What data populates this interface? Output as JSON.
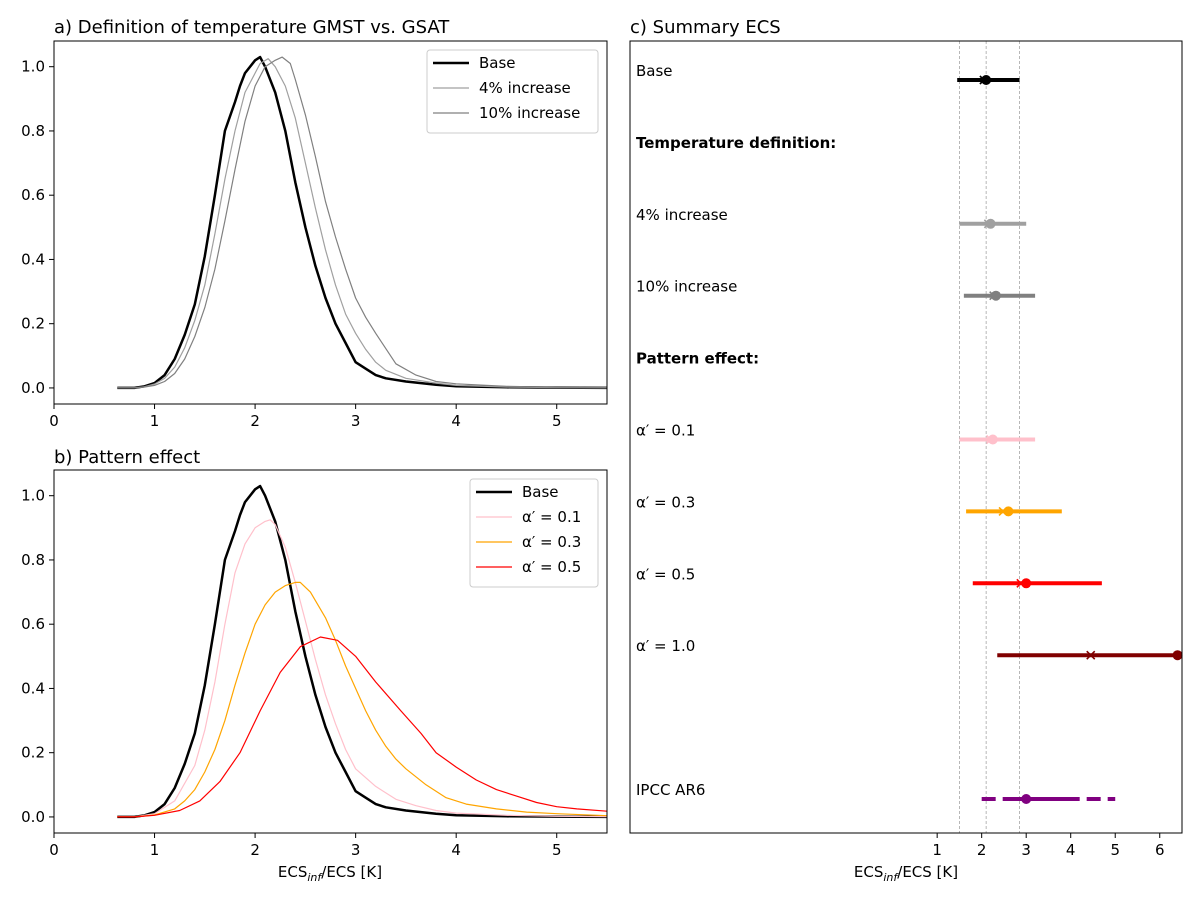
{
  "chart_data": [
    {
      "type": "line",
      "title": "a) Definition of temperature GMST vs. GSAT",
      "xlabel": "",
      "ylabel": "",
      "xlim": [
        0,
        5.5
      ],
      "ylim": [
        -0.05,
        1.08
      ],
      "xticks": [
        0,
        1,
        2,
        3,
        4,
        5
      ],
      "yticks": [
        0.0,
        0.2,
        0.4,
        0.6,
        0.8,
        1.0
      ],
      "legend_position": "upper-right",
      "series": [
        {
          "name": "Base",
          "color": "#000000",
          "x": [
            0.63,
            0.8,
            0.9,
            1.0,
            1.1,
            1.2,
            1.3,
            1.4,
            1.5,
            1.6,
            1.7,
            1.8,
            1.85,
            1.9,
            2.0,
            2.05,
            2.1,
            2.2,
            2.3,
            2.4,
            2.5,
            2.6,
            2.7,
            2.8,
            2.9,
            3.0,
            3.1,
            3.2,
            3.3,
            3.5,
            3.8,
            4.0,
            4.5,
            5.0,
            5.5
          ],
          "y": [
            0.0,
            0.0,
            0.005,
            0.015,
            0.04,
            0.09,
            0.165,
            0.26,
            0.41,
            0.6,
            0.8,
            0.89,
            0.94,
            0.98,
            1.02,
            1.03,
            1.0,
            0.92,
            0.8,
            0.64,
            0.5,
            0.38,
            0.28,
            0.2,
            0.14,
            0.08,
            0.06,
            0.04,
            0.03,
            0.02,
            0.01,
            0.005,
            0.002,
            0.001,
            0.0
          ]
        },
        {
          "name": "4% increase",
          "color": "#a0a0a0",
          "x": [
            0.63,
            0.8,
            0.9,
            1.0,
            1.1,
            1.2,
            1.3,
            1.4,
            1.5,
            1.6,
            1.7,
            1.8,
            1.9,
            2.0,
            2.05,
            2.13,
            2.2,
            2.3,
            2.4,
            2.5,
            2.6,
            2.7,
            2.8,
            2.9,
            3.0,
            3.1,
            3.2,
            3.3,
            3.5,
            3.8,
            4.0,
            4.5,
            5.0,
            5.5
          ],
          "y": [
            0.0,
            0.0,
            0.004,
            0.012,
            0.03,
            0.065,
            0.125,
            0.21,
            0.32,
            0.48,
            0.65,
            0.8,
            0.92,
            0.98,
            1.01,
            1.025,
            1.0,
            0.94,
            0.84,
            0.7,
            0.56,
            0.43,
            0.32,
            0.23,
            0.17,
            0.12,
            0.08,
            0.055,
            0.03,
            0.015,
            0.008,
            0.003,
            0.001,
            0.0
          ]
        },
        {
          "name": "10% increase",
          "color": "#808080",
          "x": [
            0.63,
            0.8,
            0.9,
            1.0,
            1.1,
            1.2,
            1.3,
            1.4,
            1.5,
            1.6,
            1.7,
            1.8,
            1.9,
            2.0,
            2.1,
            2.2,
            2.27,
            2.35,
            2.4,
            2.5,
            2.6,
            2.7,
            2.8,
            2.9,
            3.0,
            3.1,
            3.2,
            3.4,
            3.6,
            3.8,
            4.0,
            4.5,
            5.0,
            5.5
          ],
          "y": [
            0.0,
            0.0,
            0.003,
            0.008,
            0.02,
            0.045,
            0.09,
            0.16,
            0.25,
            0.37,
            0.52,
            0.68,
            0.83,
            0.94,
            1.0,
            1.02,
            1.03,
            1.01,
            0.96,
            0.85,
            0.72,
            0.58,
            0.47,
            0.37,
            0.28,
            0.22,
            0.17,
            0.075,
            0.04,
            0.02,
            0.013,
            0.005,
            0.002,
            0.001
          ]
        }
      ]
    },
    {
      "type": "line",
      "title": "b) Pattern effect",
      "xlabel": "ECS_inf/ECS [K]",
      "ylabel": "",
      "xlim": [
        0,
        5.5
      ],
      "ylim": [
        -0.05,
        1.08
      ],
      "xticks": [
        0,
        1,
        2,
        3,
        4,
        5
      ],
      "yticks": [
        0.0,
        0.2,
        0.4,
        0.6,
        0.8,
        1.0
      ],
      "legend_position": "upper-right",
      "series": [
        {
          "name": "Base",
          "color": "#000000",
          "x": [
            0.63,
            0.8,
            0.9,
            1.0,
            1.1,
            1.2,
            1.3,
            1.4,
            1.5,
            1.6,
            1.7,
            1.8,
            1.85,
            1.9,
            2.0,
            2.05,
            2.1,
            2.2,
            2.3,
            2.4,
            2.5,
            2.6,
            2.7,
            2.8,
            2.9,
            3.0,
            3.1,
            3.2,
            3.3,
            3.5,
            3.8,
            4.0,
            4.5,
            5.0,
            5.5
          ],
          "y": [
            0.0,
            0.0,
            0.005,
            0.015,
            0.04,
            0.09,
            0.165,
            0.26,
            0.41,
            0.6,
            0.8,
            0.89,
            0.94,
            0.98,
            1.02,
            1.03,
            1.0,
            0.92,
            0.8,
            0.64,
            0.5,
            0.38,
            0.28,
            0.2,
            0.14,
            0.08,
            0.06,
            0.04,
            0.03,
            0.02,
            0.01,
            0.005,
            0.002,
            0.001,
            0.0
          ]
        },
        {
          "name": "α′ =  0.1",
          "color": "#ffc0cb",
          "x": [
            0.63,
            0.8,
            1.0,
            1.2,
            1.4,
            1.5,
            1.6,
            1.7,
            1.8,
            1.9,
            2.0,
            2.1,
            2.15,
            2.2,
            2.3,
            2.4,
            2.5,
            2.6,
            2.7,
            2.8,
            2.9,
            3.0,
            3.2,
            3.4,
            3.6,
            3.8,
            4.0,
            4.5,
            5.0,
            5.5
          ],
          "y": [
            0.0,
            0.0,
            0.01,
            0.05,
            0.16,
            0.27,
            0.42,
            0.6,
            0.76,
            0.85,
            0.9,
            0.92,
            0.925,
            0.91,
            0.84,
            0.73,
            0.61,
            0.49,
            0.38,
            0.29,
            0.21,
            0.15,
            0.095,
            0.055,
            0.035,
            0.02,
            0.012,
            0.005,
            0.002,
            0.001
          ]
        },
        {
          "name": "α′ =  0.3",
          "color": "#ffa500",
          "x": [
            0.63,
            0.8,
            1.0,
            1.2,
            1.3,
            1.4,
            1.5,
            1.6,
            1.7,
            1.8,
            1.9,
            2.0,
            2.1,
            2.2,
            2.3,
            2.4,
            2.45,
            2.55,
            2.7,
            2.8,
            2.9,
            3.0,
            3.1,
            3.2,
            3.3,
            3.4,
            3.5,
            3.7,
            3.9,
            4.1,
            4.4,
            4.7,
            5.0,
            5.5
          ],
          "y": [
            0.0,
            0.0,
            0.006,
            0.025,
            0.05,
            0.085,
            0.14,
            0.21,
            0.3,
            0.41,
            0.51,
            0.6,
            0.66,
            0.7,
            0.72,
            0.73,
            0.73,
            0.7,
            0.62,
            0.55,
            0.47,
            0.4,
            0.33,
            0.27,
            0.22,
            0.18,
            0.15,
            0.1,
            0.06,
            0.04,
            0.025,
            0.015,
            0.01,
            0.004
          ]
        },
        {
          "name": "α′ =  0.5",
          "color": "#ff0000",
          "x": [
            0.63,
            0.8,
            1.0,
            1.25,
            1.45,
            1.65,
            1.85,
            2.05,
            2.25,
            2.45,
            2.65,
            2.82,
            3.0,
            3.2,
            3.45,
            3.65,
            3.8,
            4.0,
            4.2,
            4.4,
            4.6,
            4.8,
            5.0,
            5.2,
            5.5
          ],
          "y": [
            0.0,
            0.0,
            0.005,
            0.02,
            0.05,
            0.11,
            0.2,
            0.33,
            0.45,
            0.53,
            0.56,
            0.55,
            0.5,
            0.42,
            0.33,
            0.26,
            0.2,
            0.155,
            0.115,
            0.085,
            0.065,
            0.045,
            0.032,
            0.025,
            0.018
          ]
        }
      ]
    },
    {
      "type": "errorbar",
      "title": "c) Summary ECS",
      "xlabel": "ECS_inf/ECS [K]",
      "ylabel": "",
      "xlim": [
        -5.9,
        6.5
      ],
      "xticks": [
        1,
        2,
        3,
        4,
        5,
        6
      ],
      "vlines": [
        1.5,
        2.1,
        2.85
      ],
      "rows": [
        {
          "label": "Base",
          "bold": false,
          "color": "#000000",
          "lo": 1.45,
          "hi": 2.85,
          "dot": 2.1,
          "cross": 2.05
        },
        {
          "label": "Temperature definition:",
          "bold": true
        },
        {
          "label": "4% increase",
          "bold": false,
          "color": "#a0a0a0",
          "lo": 1.5,
          "hi": 3.0,
          "dot": 2.2,
          "cross": 2.15
        },
        {
          "label": "10% increase",
          "bold": false,
          "color": "#808080",
          "lo": 1.6,
          "hi": 3.2,
          "dot": 2.32,
          "cross": 2.27
        },
        {
          "label": "Pattern effect:",
          "bold": true
        },
        {
          "label": "α′ =   0.1",
          "bold": false,
          "color": "#ffc0cb",
          "lo": 1.5,
          "hi": 3.2,
          "dot": 2.25,
          "cross": 2.2
        },
        {
          "label": "α′ =   0.3",
          "bold": false,
          "color": "#ffa500",
          "lo": 1.65,
          "hi": 3.8,
          "dot": 2.6,
          "cross": 2.48
        },
        {
          "label": "α′ =   0.5",
          "bold": false,
          "color": "#ff0000",
          "lo": 1.8,
          "hi": 4.7,
          "dot": 3.0,
          "cross": 2.88
        },
        {
          "label": "α′ =   1.0",
          "bold": false,
          "color": "#800000",
          "lo": 2.35,
          "hi": 6.5,
          "dot": 6.4,
          "cross": 4.45
        },
        {
          "label": "",
          "bold": false
        },
        {
          "label": "IPCC AR6",
          "bold": false,
          "color": "#800080",
          "lo": 2.0,
          "hi": 5.0,
          "likely_lo": 2.5,
          "likely_hi": 4.0,
          "dot": 3.0,
          "style": "dashed-outer"
        }
      ]
    }
  ]
}
